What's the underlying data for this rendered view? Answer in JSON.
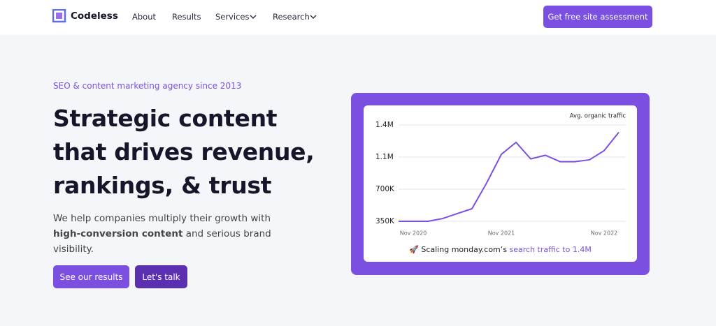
{
  "nav": {
    "logo": "Codeless",
    "links": [
      "About",
      "Results",
      "Services",
      "Research"
    ],
    "cta": "Get free site assessment"
  },
  "hero": {
    "eyebrow": "SEO & content marketing agency since 2013",
    "title_lines": [
      "Strategic content",
      "that drives revenue,",
      "rankings, & trust"
    ],
    "body": {
      "before": "We help companies multiply their growth with ",
      "bold": "high-conversion content",
      "after": " and serious brand visibility."
    },
    "buttons": [
      "See our results",
      "Let's talk"
    ],
    "card_caption": {
      "icon": "🚀",
      "text": "Scaling monday.com’s ",
      "highlight": "search traffic to 1.4M"
    }
  },
  "chart_data": {
    "type": "line",
    "title": "Avg. organic traffic",
    "categories": [
      null,
      "Nov 2020",
      null,
      null,
      null,
      null,
      null,
      "Nov 2021",
      null,
      null,
      null,
      null,
      null,
      null,
      "Nov 2022",
      null
    ],
    "series": [
      {
        "color": "#7b4fe0",
        "values": [
          350000,
          350000,
          350000,
          380000,
          434000,
          487000,
          768000,
          1080000,
          1210000,
          1030000,
          1070000,
          1000000,
          1000000,
          1020000,
          1120000,
          1320000
        ]
      }
    ],
    "ylim": [
      350000,
      1400000
    ],
    "yticks": [
      {
        "value": 350000,
        "label": "350K"
      },
      {
        "value": 700000,
        "label": "700K"
      },
      {
        "value": 1050000,
        "label": "1.1M"
      },
      {
        "value": 1400000,
        "label": "1.4M"
      }
    ],
    "grid": true
  }
}
